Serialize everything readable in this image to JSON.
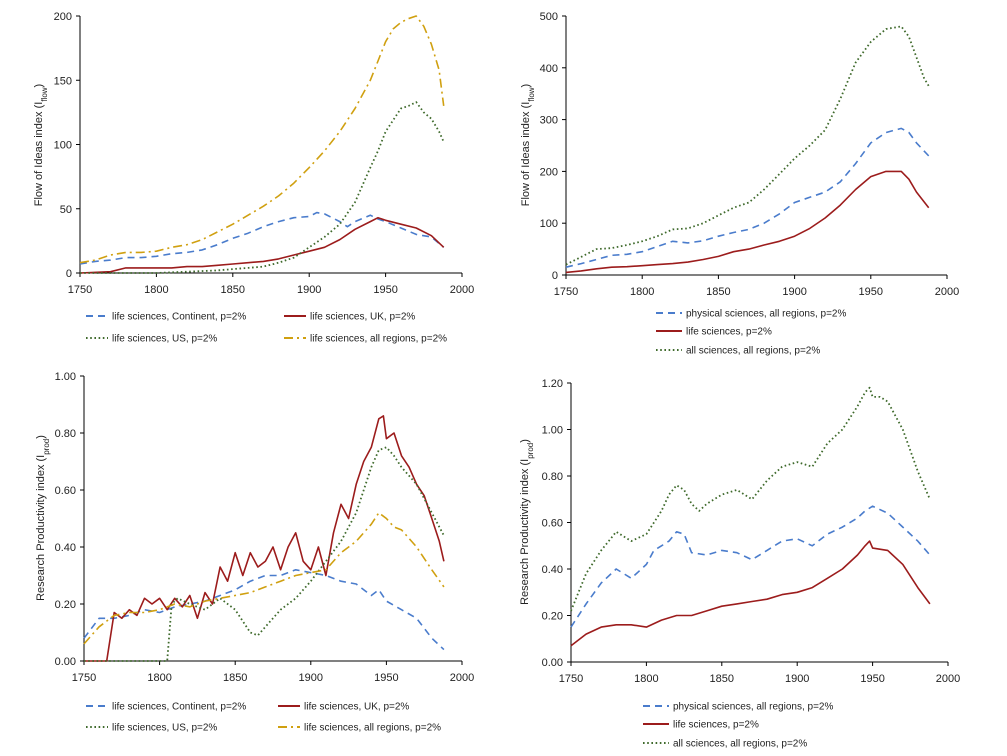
{
  "colors": {
    "blue": "#4a7ccc",
    "red": "#9c1c1c",
    "green": "#3f6a2c",
    "gold": "#d0a010"
  },
  "chart_data": [
    {
      "id": "tl",
      "type": "line",
      "ylabel": {
        "main": "Flow of Ideas index (I",
        "sub": "flow",
        "end": ")"
      },
      "xlim": [
        1750,
        2000
      ],
      "xticks": [
        "1750",
        "1800",
        "1850",
        "1900",
        "1950",
        "2000"
      ],
      "ylim": [
        0,
        200
      ],
      "yticks": [
        "0",
        "50",
        "100",
        "150",
        "200"
      ],
      "legend_layout": "grid",
      "series": [
        {
          "name": "life sciences, Continent, p=2%",
          "color": "#4a7ccc",
          "dash": "dash",
          "x": [
            1750,
            1760,
            1770,
            1780,
            1790,
            1800,
            1810,
            1820,
            1830,
            1840,
            1850,
            1860,
            1870,
            1880,
            1890,
            1900,
            1905,
            1910,
            1920,
            1925,
            1930,
            1940,
            1945,
            1950,
            1960,
            1970,
            1980,
            1988
          ],
          "y": [
            7,
            9,
            10,
            12,
            12,
            13,
            15,
            16,
            18,
            22,
            27,
            31,
            36,
            40,
            43,
            44,
            47,
            46,
            40,
            36,
            40,
            45,
            42,
            40,
            35,
            30,
            28,
            20
          ]
        },
        {
          "name": "life sciences, UK, p=2%",
          "color": "#9c1c1c",
          "dash": "solid",
          "x": [
            1750,
            1770,
            1780,
            1790,
            1800,
            1810,
            1820,
            1830,
            1840,
            1850,
            1860,
            1870,
            1880,
            1890,
            1900,
            1910,
            1920,
            1930,
            1940,
            1945,
            1950,
            1960,
            1970,
            1980,
            1988
          ],
          "y": [
            0,
            1,
            4,
            4,
            4,
            4,
            5,
            5,
            6,
            7,
            8,
            9,
            11,
            14,
            17,
            20,
            26,
            34,
            40,
            43,
            41,
            38,
            35,
            29,
            20
          ]
        },
        {
          "name": "life sciences, US, p=2%",
          "color": "#3f6a2c",
          "dash": "dot",
          "x": [
            1750,
            1800,
            1820,
            1840,
            1850,
            1860,
            1870,
            1880,
            1890,
            1900,
            1910,
            1920,
            1930,
            1940,
            1945,
            1950,
            1960,
            1965,
            1970,
            1975,
            1980,
            1985,
            1988
          ],
          "y": [
            0,
            0,
            1,
            2,
            3,
            4,
            5,
            8,
            12,
            20,
            28,
            38,
            55,
            82,
            95,
            110,
            128,
            130,
            133,
            125,
            120,
            110,
            102
          ]
        },
        {
          "name": "life sciences, all regions, p=2%",
          "color": "#d0a010",
          "dash": "dashdot",
          "x": [
            1750,
            1760,
            1770,
            1780,
            1790,
            1800,
            1810,
            1820,
            1830,
            1840,
            1850,
            1860,
            1870,
            1880,
            1890,
            1900,
            1910,
            1920,
            1930,
            1940,
            1945,
            1950,
            1955,
            1960,
            1965,
            1970,
            1975,
            1980,
            1985,
            1988
          ],
          "y": [
            8,
            10,
            14,
            16,
            16,
            17,
            20,
            22,
            26,
            32,
            38,
            45,
            52,
            60,
            70,
            82,
            95,
            110,
            128,
            150,
            165,
            180,
            190,
            195,
            198,
            200,
            192,
            178,
            158,
            130
          ]
        }
      ]
    },
    {
      "id": "tr",
      "type": "line",
      "ylabel": {
        "main": "Flow of Ideas index (I",
        "sub": "flow",
        "end": ")"
      },
      "xlim": [
        1750,
        2000
      ],
      "xticks": [
        "1750",
        "1800",
        "1850",
        "1900",
        "1950",
        "2000"
      ],
      "ylim": [
        0,
        500
      ],
      "yticks": [
        "0",
        "100",
        "200",
        "300",
        "400",
        "500"
      ],
      "legend_layout": "column",
      "series": [
        {
          "name": "physical sciences, all regions, p=2%",
          "color": "#4a7ccc",
          "dash": "dash",
          "x": [
            1750,
            1760,
            1770,
            1780,
            1790,
            1800,
            1810,
            1820,
            1830,
            1840,
            1850,
            1860,
            1870,
            1880,
            1890,
            1900,
            1910,
            1920,
            1930,
            1940,
            1950,
            1960,
            1970,
            1975,
            1980,
            1988
          ],
          "y": [
            15,
            22,
            30,
            38,
            40,
            45,
            55,
            65,
            62,
            66,
            75,
            82,
            88,
            100,
            118,
            140,
            150,
            160,
            180,
            215,
            255,
            275,
            283,
            275,
            255,
            230
          ]
        },
        {
          "name": "life sciences, p=2%",
          "color": "#9c1c1c",
          "dash": "solid",
          "x": [
            1750,
            1760,
            1770,
            1780,
            1790,
            1800,
            1810,
            1820,
            1830,
            1840,
            1850,
            1860,
            1870,
            1880,
            1890,
            1900,
            1910,
            1920,
            1930,
            1940,
            1950,
            1960,
            1970,
            1975,
            1980,
            1988
          ],
          "y": [
            5,
            8,
            12,
            15,
            16,
            18,
            20,
            22,
            25,
            30,
            36,
            45,
            50,
            58,
            65,
            75,
            90,
            110,
            135,
            165,
            190,
            200,
            200,
            185,
            160,
            130
          ]
        },
        {
          "name": "all sciences, all regions, p=2%",
          "color": "#3f6a2c",
          "dash": "dot",
          "x": [
            1750,
            1760,
            1770,
            1780,
            1790,
            1800,
            1810,
            1820,
            1830,
            1840,
            1850,
            1860,
            1870,
            1880,
            1890,
            1900,
            1910,
            1920,
            1930,
            1940,
            1950,
            1960,
            1970,
            1975,
            1980,
            1985,
            1988
          ],
          "y": [
            20,
            35,
            50,
            52,
            58,
            65,
            75,
            88,
            90,
            100,
            115,
            130,
            140,
            165,
            195,
            225,
            250,
            280,
            340,
            410,
            450,
            475,
            480,
            460,
            420,
            380,
            365
          ]
        }
      ]
    },
    {
      "id": "bl",
      "type": "line",
      "ylabel": {
        "main": "Research Productivity index (I",
        "sub": "prod",
        "end": ")"
      },
      "xlim": [
        1750,
        2000
      ],
      "xticks": [
        "1750",
        "1800",
        "1850",
        "1900",
        "1950",
        "2000"
      ],
      "ylim": [
        0,
        1
      ],
      "yticks": [
        "0.00",
        "0.20",
        "0.40",
        "0.60",
        "0.80",
        "1.00"
      ],
      "legend_layout": "grid",
      "series": [
        {
          "name": "life sciences, Continent, p=2%",
          "color": "#4a7ccc",
          "dash": "dash",
          "x": [
            1750,
            1760,
            1770,
            1780,
            1790,
            1800,
            1810,
            1820,
            1830,
            1840,
            1850,
            1860,
            1870,
            1880,
            1890,
            1900,
            1910,
            1920,
            1930,
            1940,
            1945,
            1950,
            1960,
            1970,
            1980,
            1988
          ],
          "y": [
            0.08,
            0.15,
            0.15,
            0.16,
            0.18,
            0.17,
            0.19,
            0.2,
            0.21,
            0.23,
            0.25,
            0.28,
            0.3,
            0.3,
            0.32,
            0.31,
            0.3,
            0.28,
            0.27,
            0.23,
            0.25,
            0.21,
            0.18,
            0.15,
            0.08,
            0.04
          ]
        },
        {
          "name": "life sciences, UK, p=2%",
          "color": "#9c1c1c",
          "dash": "solid",
          "x": [
            1750,
            1765,
            1770,
            1775,
            1780,
            1785,
            1790,
            1795,
            1800,
            1805,
            1810,
            1815,
            1820,
            1825,
            1830,
            1835,
            1840,
            1845,
            1850,
            1855,
            1860,
            1865,
            1870,
            1875,
            1880,
            1885,
            1890,
            1895,
            1900,
            1905,
            1910,
            1915,
            1920,
            1925,
            1930,
            1935,
            1940,
            1945,
            1948,
            1950,
            1955,
            1960,
            1965,
            1970,
            1975,
            1980,
            1985,
            1988
          ],
          "y": [
            0.0,
            0.0,
            0.17,
            0.15,
            0.18,
            0.16,
            0.22,
            0.2,
            0.22,
            0.18,
            0.22,
            0.19,
            0.23,
            0.15,
            0.24,
            0.2,
            0.33,
            0.28,
            0.38,
            0.3,
            0.38,
            0.33,
            0.35,
            0.4,
            0.32,
            0.4,
            0.45,
            0.35,
            0.32,
            0.4,
            0.3,
            0.45,
            0.55,
            0.5,
            0.62,
            0.7,
            0.75,
            0.85,
            0.86,
            0.78,
            0.8,
            0.72,
            0.68,
            0.62,
            0.58,
            0.5,
            0.42,
            0.35
          ]
        },
        {
          "name": "life sciences, US, p=2%",
          "color": "#3f6a2c",
          "dash": "dot",
          "x": [
            1750,
            1800,
            1805,
            1808,
            1812,
            1820,
            1830,
            1840,
            1850,
            1860,
            1865,
            1870,
            1880,
            1890,
            1900,
            1910,
            1920,
            1930,
            1940,
            1945,
            1950,
            1955,
            1960,
            1970,
            1980,
            1988
          ],
          "y": [
            0.0,
            0.0,
            0.0,
            0.2,
            0.22,
            0.2,
            0.18,
            0.22,
            0.18,
            0.1,
            0.09,
            0.12,
            0.18,
            0.22,
            0.28,
            0.35,
            0.42,
            0.52,
            0.68,
            0.74,
            0.75,
            0.72,
            0.68,
            0.62,
            0.52,
            0.44
          ]
        },
        {
          "name": "life sciences, all regions, p=2%",
          "color": "#d0a010",
          "dash": "dashdot",
          "x": [
            1750,
            1760,
            1770,
            1780,
            1790,
            1800,
            1810,
            1820,
            1830,
            1840,
            1850,
            1860,
            1870,
            1880,
            1890,
            1900,
            1910,
            1920,
            1930,
            1940,
            1945,
            1950,
            1955,
            1960,
            1970,
            1980,
            1988
          ],
          "y": [
            0.06,
            0.12,
            0.16,
            0.17,
            0.17,
            0.18,
            0.2,
            0.19,
            0.21,
            0.22,
            0.23,
            0.24,
            0.26,
            0.28,
            0.3,
            0.31,
            0.32,
            0.38,
            0.42,
            0.48,
            0.52,
            0.5,
            0.47,
            0.46,
            0.4,
            0.32,
            0.26
          ]
        }
      ]
    },
    {
      "id": "br",
      "type": "line",
      "ylabel": {
        "main": "Research Productivity index (I",
        "sub": "prod",
        "end": ")"
      },
      "xlim": [
        1750,
        2000
      ],
      "xticks": [
        "1750",
        "1800",
        "1850",
        "1900",
        "1950",
        "2000"
      ],
      "ylim": [
        0,
        1.2
      ],
      "yticks": [
        "0.00",
        "0.20",
        "0.40",
        "0.60",
        "0.80",
        "1.00",
        "1.20"
      ],
      "legend_layout": "column",
      "series": [
        {
          "name": "physical sciences, all regions, p=2%",
          "color": "#4a7ccc",
          "dash": "dash",
          "x": [
            1750,
            1760,
            1770,
            1780,
            1790,
            1800,
            1805,
            1810,
            1815,
            1820,
            1825,
            1830,
            1840,
            1850,
            1860,
            1870,
            1880,
            1890,
            1900,
            1910,
            1920,
            1930,
            1940,
            1945,
            1950,
            1960,
            1970,
            1980,
            1988
          ],
          "y": [
            0.15,
            0.25,
            0.34,
            0.4,
            0.36,
            0.42,
            0.48,
            0.5,
            0.52,
            0.56,
            0.55,
            0.47,
            0.46,
            0.48,
            0.47,
            0.44,
            0.48,
            0.52,
            0.53,
            0.5,
            0.55,
            0.58,
            0.62,
            0.65,
            0.67,
            0.64,
            0.58,
            0.52,
            0.46
          ]
        },
        {
          "name": "life sciences, p=2%",
          "color": "#9c1c1c",
          "dash": "solid",
          "x": [
            1750,
            1760,
            1770,
            1780,
            1790,
            1800,
            1810,
            1820,
            1830,
            1840,
            1850,
            1860,
            1870,
            1880,
            1890,
            1900,
            1910,
            1920,
            1930,
            1940,
            1945,
            1948,
            1950,
            1960,
            1970,
            1980,
            1988
          ],
          "y": [
            0.07,
            0.12,
            0.15,
            0.16,
            0.16,
            0.15,
            0.18,
            0.2,
            0.2,
            0.22,
            0.24,
            0.25,
            0.26,
            0.27,
            0.29,
            0.3,
            0.32,
            0.36,
            0.4,
            0.46,
            0.5,
            0.52,
            0.49,
            0.48,
            0.42,
            0.32,
            0.25
          ]
        },
        {
          "name": "all sciences, all regions, p=2%",
          "color": "#3f6a2c",
          "dash": "dot",
          "x": [
            1750,
            1760,
            1770,
            1780,
            1790,
            1800,
            1810,
            1815,
            1820,
            1825,
            1830,
            1835,
            1840,
            1850,
            1860,
            1870,
            1880,
            1890,
            1900,
            1910,
            1920,
            1930,
            1940,
            1945,
            1948,
            1950,
            1955,
            1960,
            1970,
            1980,
            1988
          ],
          "y": [
            0.22,
            0.38,
            0.48,
            0.56,
            0.52,
            0.55,
            0.65,
            0.72,
            0.76,
            0.74,
            0.68,
            0.65,
            0.68,
            0.72,
            0.74,
            0.7,
            0.78,
            0.84,
            0.86,
            0.84,
            0.94,
            1.0,
            1.1,
            1.16,
            1.18,
            1.14,
            1.14,
            1.12,
            1.0,
            0.82,
            0.7
          ]
        }
      ]
    }
  ]
}
